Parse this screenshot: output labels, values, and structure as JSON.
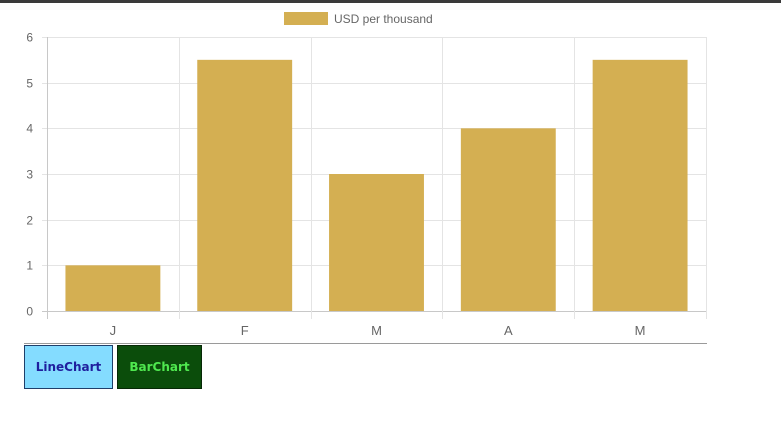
{
  "chart_data": {
    "type": "bar",
    "categories": [
      "J",
      "F",
      "M",
      "A",
      "M"
    ],
    "series": [
      {
        "name": "USD per thousand",
        "values": [
          1,
          5.5,
          3,
          4,
          5.5
        ]
      }
    ],
    "ylim": [
      0,
      6
    ],
    "yticks": [
      "0",
      "1",
      "2",
      "3",
      "4",
      "5",
      "6"
    ],
    "grid": true,
    "legend_position": "top-center",
    "bar_color": "#d4af52"
  },
  "buttons": {
    "line_chart_label": "LineChart",
    "bar_chart_label": "BarChart"
  },
  "colors": {
    "line_button_bg": "#84dcff",
    "bar_button_bg": "#0b4d0b"
  }
}
